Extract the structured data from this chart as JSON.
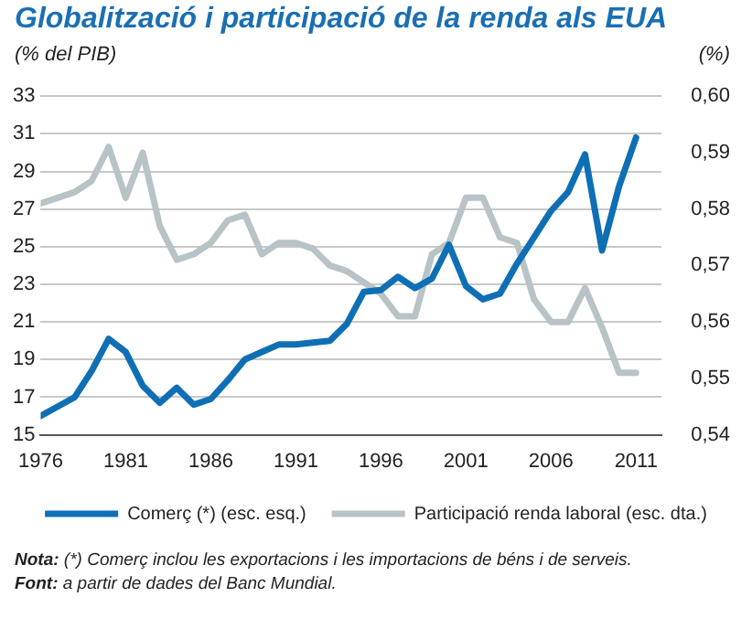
{
  "chart_data": {
    "type": "line",
    "title": "Globalització i participació de la renda als EUA",
    "ylabel": "(% del PIB)",
    "y2label": "(%)",
    "x": [
      1976,
      1977,
      1978,
      1979,
      1980,
      1981,
      1982,
      1983,
      1984,
      1985,
      1986,
      1987,
      1988,
      1989,
      1990,
      1991,
      1992,
      1993,
      1994,
      1995,
      1996,
      1997,
      1998,
      1999,
      2000,
      2001,
      2002,
      2003,
      2004,
      2005,
      2006,
      2007,
      2008,
      2009,
      2010,
      2011
    ],
    "series": [
      {
        "name": "Comerç (*) (esc. esq.)",
        "color": "#0f6fb5",
        "values": [
          16.0,
          16.5,
          17.0,
          18.4,
          20.1,
          19.4,
          17.6,
          16.7,
          17.5,
          16.6,
          16.9,
          17.9,
          19.0,
          19.4,
          19.8,
          19.8,
          19.9,
          20.0,
          20.9,
          22.6,
          22.7,
          23.4,
          22.8,
          23.3,
          25.1,
          22.9,
          22.2,
          22.5,
          24.1,
          25.5,
          26.9,
          27.9,
          29.9,
          24.8,
          28.2,
          30.8
        ]
      },
      {
        "name": "Participació renda laboral (esc. dta.)",
        "color": "#b7c3c6",
        "axis": "y2",
        "values": [
          0.581,
          0.582,
          0.583,
          0.585,
          0.591,
          0.582,
          0.59,
          0.577,
          0.571,
          0.572,
          0.574,
          0.578,
          0.579,
          0.572,
          0.574,
          0.574,
          0.573,
          0.57,
          0.569,
          0.567,
          0.565,
          0.561,
          0.561,
          0.572,
          0.574,
          0.582,
          0.582,
          0.575,
          0.574,
          0.564,
          0.56,
          0.56,
          0.566,
          0.559,
          0.551,
          0.551
        ]
      }
    ],
    "xlim": [
      1976,
      2012.5
    ],
    "xticks": [
      1976,
      1981,
      1986,
      1991,
      1996,
      2001,
      2006,
      2011
    ],
    "ylim": [
      15,
      33
    ],
    "yticks": [
      15,
      17,
      19,
      21,
      23,
      25,
      27,
      29,
      31,
      33
    ],
    "y2lim": [
      0.54,
      0.6
    ],
    "y2ticks": [
      {
        "value": 0.54,
        "label": "0,54"
      },
      {
        "value": 0.55,
        "label": "0,55"
      },
      {
        "value": 0.56,
        "label": "0,56"
      },
      {
        "value": 0.57,
        "label": "0,57"
      },
      {
        "value": 0.58,
        "label": "0,58"
      },
      {
        "value": 0.59,
        "label": "0,59"
      },
      {
        "value": 0.6,
        "label": "0,60"
      }
    ],
    "grid": "y",
    "legend": "bottom",
    "marker": "none",
    "line_style": "solid",
    "annotations": [
      "Nota: (*) Comerç inclou les exportacions i les importacions de béns i de serveis.",
      "Font: a partir de dades del Banc Mundial."
    ]
  }
}
